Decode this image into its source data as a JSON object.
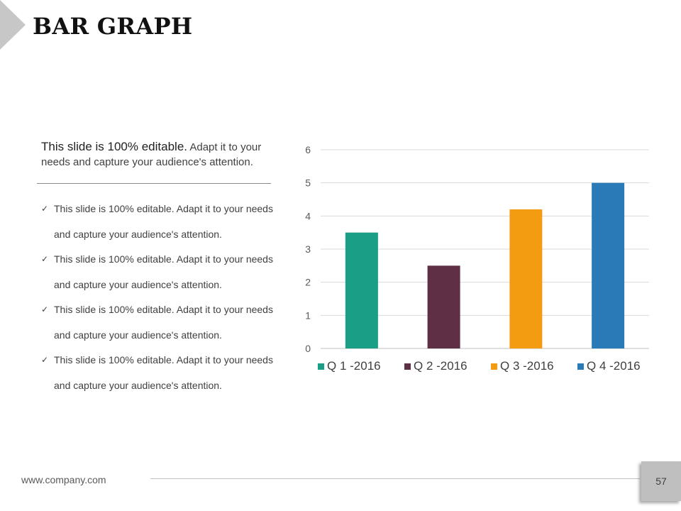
{
  "slide": {
    "title": "BAR GRAPH",
    "intro_lead": "This slide is 100% editable.",
    "intro_rest": " Adapt it to your needs and capture your audience's attention.",
    "bullets": [
      "This slide is 100% editable. Adapt it to your needs and capture your audience's attention.",
      "This slide is 100% editable. Adapt it to your needs and capture your audience's attention.",
      "This slide is 100% editable. Adapt it to your needs and capture your audience's attention.",
      "This slide is 100% editable. Adapt it to your needs and capture your audience's attention."
    ],
    "footer_url": "www.company.com",
    "page_number": "57"
  },
  "chart_data": {
    "type": "bar",
    "categories": [
      "Q 1 -2016",
      "Q 2 -2016",
      "Q 3 -2016",
      "Q 4 -2016"
    ],
    "values": [
      3.5,
      2.5,
      4.2,
      5
    ],
    "colors": [
      "#1a9e85",
      "#5e2f45",
      "#f39c12",
      "#2a7ab8"
    ],
    "legend": [
      "Q 1 -2016",
      "Q 2 -2016",
      "Q 3 -2016",
      "Q 4 -2016"
    ],
    "legend_position": "bottom",
    "ylim": [
      0,
      6
    ],
    "yticks": [
      "0",
      "1",
      "2",
      "3",
      "4",
      "5",
      "6"
    ],
    "grid": true
  }
}
